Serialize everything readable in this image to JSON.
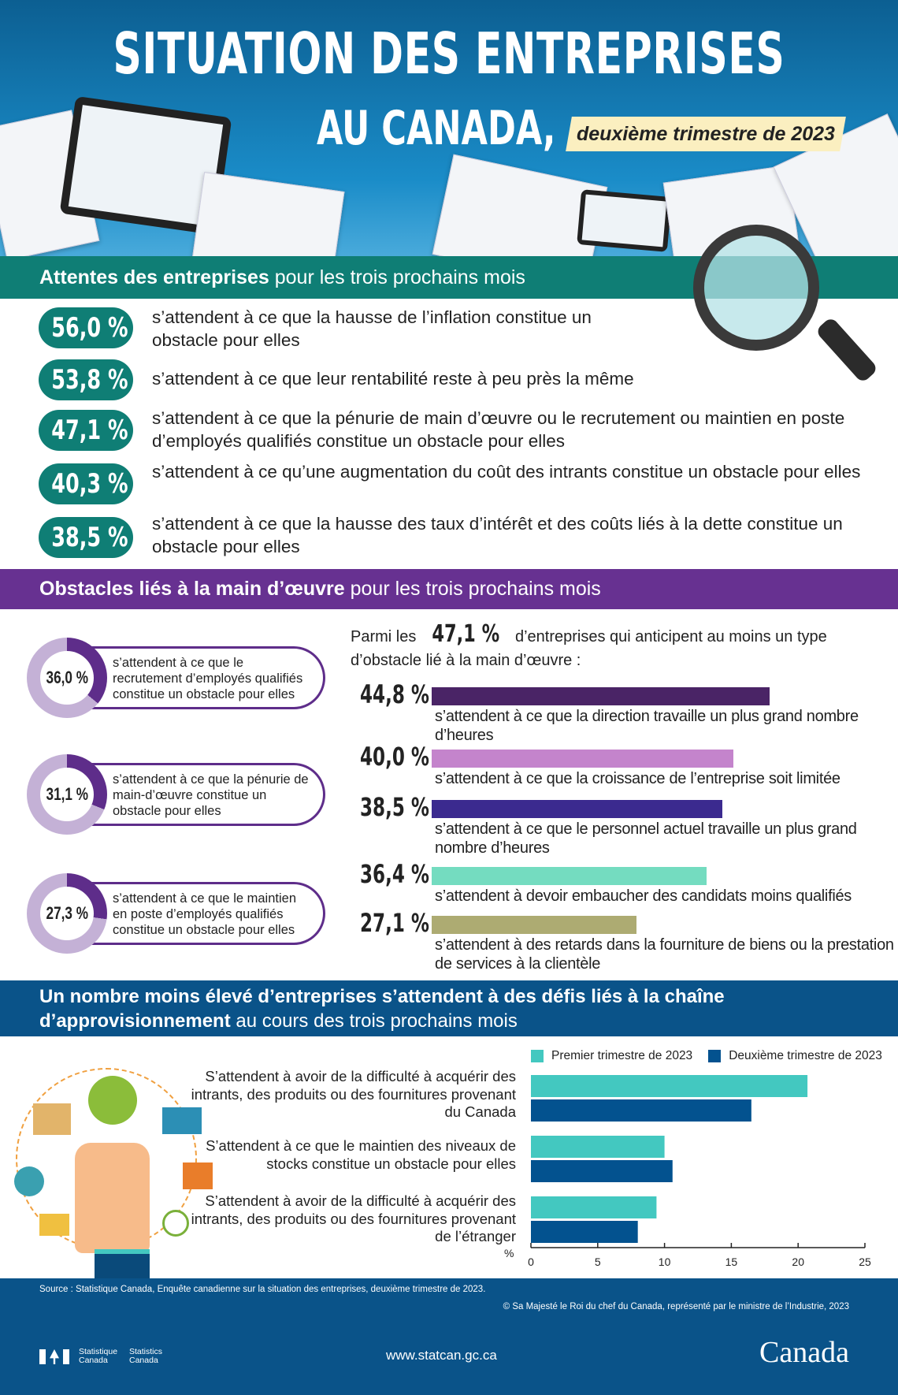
{
  "header": {
    "title_line1": "SITUATION DES ENTREPRISES",
    "title_line2": "AU CANADA,",
    "period_badge": "deuxième trimestre de 2023"
  },
  "expectations": {
    "heading_bold": "Attentes des entreprises",
    "heading_rest": " pour les trois prochains mois",
    "color": "#0f7e75",
    "items": [
      {
        "value": "56,0 %",
        "text": "s’attendent à ce que la hausse de l’inflation constitue un obstacle pour elles"
      },
      {
        "value": "53,8 %",
        "text": "s’attendent à ce que leur rentabilité reste à peu près la même"
      },
      {
        "value": "47,1 %",
        "text": "s’attendent à ce que la pénurie de main d’œuvre ou le recrutement ou maintien en poste d’employés qualifiés constitue un obstacle pour elles"
      },
      {
        "value": "40,3 %",
        "text": "s’attendent à ce qu’une augmentation du coût des intrants constitue un obstacle pour elles"
      },
      {
        "value": "38,5 %",
        "text": "s’attendent à ce que la hausse des taux d’intérêt et des coûts liés à la dette constitue un obstacle pour elles"
      }
    ]
  },
  "labour": {
    "heading_bold": "Obstacles liés à la main d’œuvre",
    "heading_rest": " pour les trois prochains mois",
    "color": "#673191",
    "donuts": [
      {
        "value": "36,0 %",
        "fraction": 0.36,
        "text": "s’attendent à ce que le recrutement d’employés qualifiés constitue un obstacle pour elles"
      },
      {
        "value": "31,1 %",
        "fraction": 0.311,
        "text": "s’attendent à ce que la pénurie de main-d’œuvre constitue un obstacle pour elles"
      },
      {
        "value": "27,3 %",
        "fraction": 0.273,
        "text": "s’attendent à ce que le maintien en poste d’employés qualifiés constitue un obstacle pour elles"
      }
    ],
    "intro_pre": "Parmi les ",
    "intro_value": "47,1 %",
    "intro_post": " d’entreprises qui anticipent au moins un type d’obstacle lié à la main d’œuvre :",
    "bars": [
      {
        "value": 44.8,
        "label": "44,8 %",
        "color": "#4a2466",
        "text": "s’attendent à ce que la direction travaille un plus grand nombre d’heures"
      },
      {
        "value": 40.0,
        "label": "40,0 %",
        "color": "#c484cc",
        "text": "s’attendent à ce que la croissance de l’entreprise soit limitée"
      },
      {
        "value": 38.5,
        "label": "38,5 %",
        "color": "#3b2a8f",
        "text": "s’attendent à ce que le personnel actuel travaille un plus grand nombre d’heures"
      },
      {
        "value": 36.4,
        "label": "36,4 %",
        "color": "#74dcc0",
        "text": "s’attendent à devoir embaucher des candidats moins qualifiés"
      },
      {
        "value": 27.1,
        "label": "27,1 %",
        "color": "#adab72",
        "text": "s’attendent à des retards dans la fourniture de biens ou la prestation de services à la clientèle"
      }
    ]
  },
  "supply": {
    "heading_bold": "Un nombre moins élevé d’entreprises s’attendent à des défis liés à la chaîne d’approvisionnement",
    "heading_rest": "  au cours des trois prochains mois",
    "color": "#0a5389"
  },
  "chart_data": {
    "type": "bar",
    "orientation": "horizontal",
    "categories": [
      "S’attendent à avoir de la difficulté à acquérir des intrants, des produits ou des fournitures provenant du Canada",
      "S’attendent à ce que le maintien des niveaux de stocks constitue un obstacle pour elles",
      "S’attendent à avoir de la difficulté à acquérir des intrants, des produits ou des fournitures provenant de l’étranger"
    ],
    "series": [
      {
        "name": "Premier trimestre de 2023",
        "color": "#43c8c0",
        "values": [
          20.7,
          10.0,
          9.4
        ]
      },
      {
        "name": "Deuxième trimestre de 2023",
        "color": "#03528f",
        "values": [
          16.5,
          10.6,
          8.0
        ]
      }
    ],
    "xlabel": "%",
    "xlim": [
      0,
      25
    ],
    "ticks": [
      "0",
      "5",
      "10",
      "15",
      "20",
      "25"
    ],
    "legend": "top",
    "grid": false
  },
  "footer": {
    "source": "Source : Statistique Canada, Enquête canadienne sur la situation des entreprises, deuxième trimestre de 2023.",
    "copyright": "© Sa Majesté le Roi du chef du Canada, représenté par le ministre de l’Industrie, 2023",
    "url": "www.statcan.gc.ca",
    "logo_fr_1": "Statistique",
    "logo_fr_2": "Canada",
    "logo_en_1": "Statistics",
    "logo_en_2": "Canada",
    "wordmark": "Canada"
  }
}
